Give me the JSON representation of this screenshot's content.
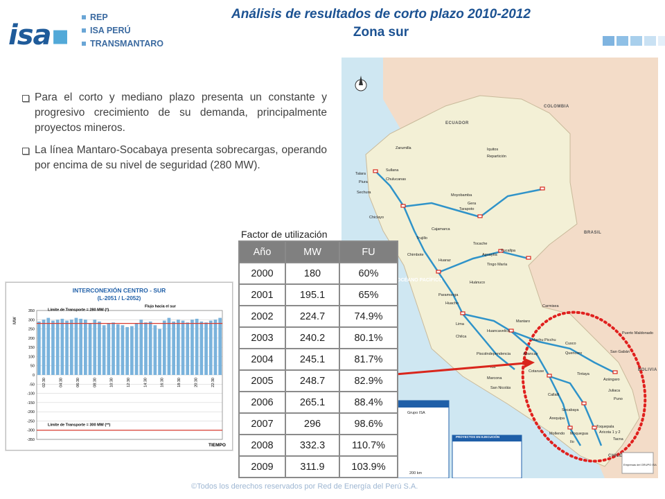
{
  "logo": {
    "mark": "isa",
    "items": [
      "REP",
      "ISA PERÚ",
      "TRANSMANTARO"
    ]
  },
  "title": {
    "line1": "Análisis de resultados de corto plazo 2010-2012",
    "line2": "Zona sur"
  },
  "deco_colors": [
    "#7fb4e0",
    "#8fc0e6",
    "#a8cfec",
    "#c9e1f3",
    "#e3eff9"
  ],
  "bullets": [
    "Para el corto y mediano plazo presenta un constante y progresivo crecimiento de su demanda, principalmente proyectos mineros.",
    "La línea Mantaro-Socabaya presenta sobrecargas, operando por encima de su nivel de seguridad (280 MW)."
  ],
  "map": {
    "colors": {
      "sea": "#cfe7f2",
      "peru": "#f3f0d6",
      "neighbors": "#f3dcc8",
      "line": "#2f93c9",
      "annotation": "#d9261c",
      "highlight": "#e0201e"
    },
    "countries": [
      "COLOMBIA",
      "ECUADOR",
      "BRASIL",
      "BOLIVIA",
      "CHILE"
    ],
    "ocean": "OCÉANO PACÍFICO",
    "cities": [
      "Zarumilla",
      "Talara",
      "Piura",
      "Sullana",
      "Chulucanas",
      "Sechura",
      "Moyobamba",
      "Gera",
      "Tarapoto",
      "Iquitos",
      "Repartición",
      "Chiclayo",
      "Cajamarca",
      "Trujillo",
      "Chimbote",
      "Huaraz",
      "Tocache",
      "Aguaytía",
      "Pucallpa",
      "Tingo María",
      "Huánuco",
      "Paramonga",
      "Huacho",
      "Lima",
      "Pisco",
      "Ica",
      "Marcona",
      "San Nicolás",
      "Mantaro",
      "Cotaruse",
      "Carmisea",
      "Abancay",
      "Machu Picchu",
      "Cusco",
      "Quencoro",
      "Tintaya",
      "Juliaca",
      "Puno",
      "Azángaro",
      "Callalli",
      "Socabaya",
      "Arequipa",
      "Moquegua",
      "Ilo",
      "Toquepala",
      "Tacna",
      "Aricota 1 y 2",
      "Puerto Maldonado",
      "San Gabán",
      "Huancavelica",
      "Chilca",
      "Independencia",
      "Mollendo"
    ],
    "legend_title": "PROYECTOS EN EJECUCIÓN",
    "legend_left": "Grupo ISA",
    "scale": "200 km",
    "legend_footer": "Empresas del GRUPO ISA"
  },
  "table": {
    "caption": "Factor de utilización",
    "headers": [
      "Año",
      "MW",
      "FU"
    ],
    "rows": [
      [
        "2000",
        "180",
        "60%"
      ],
      [
        "2001",
        "195.1",
        "65%"
      ],
      [
        "2002",
        "224.7",
        "74.9%"
      ],
      [
        "2003",
        "240.2",
        "80.1%"
      ],
      [
        "2004",
        "245.1",
        "81.7%"
      ],
      [
        "2005",
        "248.7",
        "82.9%"
      ],
      [
        "2006",
        "265.1",
        "88.4%"
      ],
      [
        "2007",
        "296",
        "98.6%"
      ],
      [
        "2008",
        "332.3",
        "110.7%"
      ],
      [
        "2009",
        "311.9",
        "103.9%"
      ]
    ]
  },
  "chart_data": {
    "type": "bar",
    "title": "INTERCONEXIÓN CENTRO - SUR",
    "subtitle": "(L-2051 / L-2052)",
    "ylabel": "MW",
    "xlabel": "TIEMPO",
    "ylim": [
      -350,
      350
    ],
    "yticks": [
      350,
      300,
      250,
      200,
      150,
      100,
      50,
      0,
      -50,
      -100,
      -150,
      -200,
      -250,
      -300,
      -350
    ],
    "xticks": [
      "02:30",
      "04:30",
      "06:30",
      "08:30",
      "10:30",
      "12:30",
      "14:30",
      "16:30",
      "18:30",
      "20:30",
      "22:30"
    ],
    "values": [
      290,
      300,
      310,
      295,
      300,
      305,
      295,
      300,
      310,
      305,
      300,
      280,
      300,
      290,
      270,
      280,
      285,
      275,
      270,
      260,
      265,
      280,
      300,
      285,
      290,
      270,
      250,
      295,
      310,
      290,
      300,
      295,
      285,
      300,
      305,
      290,
      285,
      295,
      300,
      310
    ],
    "annotations": [
      {
        "text": "Límite de Transporte = 280 MW (*)",
        "y": 280
      },
      {
        "text": "Flujo hacia el sur",
        "y": 330
      },
      {
        "text": "Límite de Transporte = 300 MW (**)",
        "y": -300
      }
    ],
    "colors": {
      "bar": "#7ab3dc",
      "limit": "#d93a2e",
      "title": "#1f5fa8",
      "grid": "#c9c9c9"
    },
    "grid": true
  },
  "footer": "©Todos los derechos reservados por Red de Energía del Perú S.A."
}
